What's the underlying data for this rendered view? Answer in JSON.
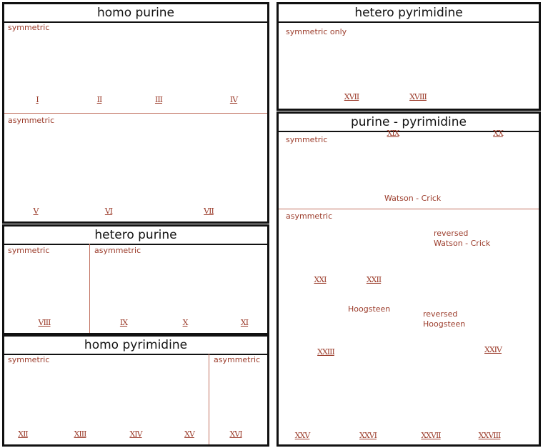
{
  "panels": {
    "homo_purine": {
      "title": "homo  purine",
      "symmetric": "symmetric",
      "asymmetric": "asymmetric",
      "numerals": [
        "I",
        "II",
        "III",
        "IV",
        "V",
        "VI",
        "VII"
      ]
    },
    "hetero_purine": {
      "title": "hetero  purine",
      "symmetric": "symmetric",
      "asymmetric": "asymmetric",
      "numerals": [
        "VIII",
        "IX",
        "X",
        "XI"
      ]
    },
    "homo_pyrimidine": {
      "title": "homo  pyrimidine",
      "symmetric": "symmetric",
      "asymmetric": "asymmetric",
      "numerals": [
        "XII",
        "XIII",
        "XIV",
        "XV",
        "XVI"
      ]
    },
    "hetero_pyrimidine": {
      "title": "hetero  pyrimidine",
      "symmetric": "symmetric only",
      "numerals": [
        "XVII",
        "XVIII"
      ]
    },
    "purine_pyrimidine": {
      "title": "purine - pyrimidine",
      "symmetric": "symmetric",
      "asymmetric": "asymmetric",
      "numerals": [
        "XIX",
        "XX",
        "XXI",
        "XXII",
        "XXIII",
        "XXIV",
        "XXV",
        "XXVI",
        "XXVII",
        "XXVIII"
      ],
      "labels": {
        "watson_crick": "Watson - Crick",
        "reversed_wc_1": "reversed",
        "reversed_wc_2": "Watson - Crick",
        "hoogsteen": "Hoogsteen",
        "reversed_h_1": "reversed",
        "reversed_h_2": "Hoogsteen"
      }
    }
  },
  "colors": {
    "accent": "#9b3b2a",
    "hbond": "#c0504a",
    "frame": "#111111"
  }
}
